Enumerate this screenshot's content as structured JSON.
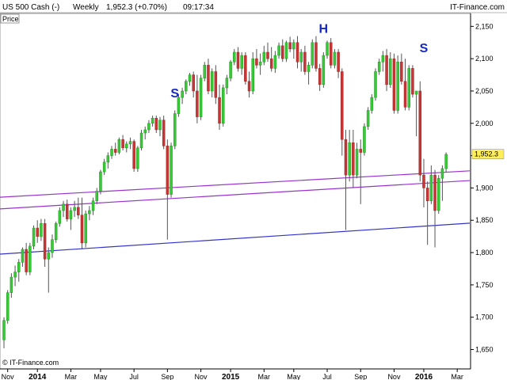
{
  "header": {
    "instrument": "US 500 Cash (-)",
    "timeframe": "Weekly",
    "last_change": "1,952.3 (+0.70%)",
    "time": "09:17:34",
    "brand": "IT-Finance.com"
  },
  "panel_label": "Price",
  "watermark": "© IT-Finance.com",
  "colors": {
    "up": "#33cc33",
    "down": "#cc3333",
    "channel": "#9933cc",
    "support": "#3333cc",
    "pattern": "#1428c8"
  },
  "chart_data": {
    "type": "candlestick",
    "title": "US 500 Cash (-) Weekly",
    "ylim": [
      1620,
      2170
    ],
    "y_ticks": [
      {
        "value": 1650,
        "label": "1,650"
      },
      {
        "value": 1700,
        "label": "1,700"
      },
      {
        "value": 1750,
        "label": "1,750"
      },
      {
        "value": 1800,
        "label": "1,800"
      },
      {
        "value": 1850,
        "label": "1,850"
      },
      {
        "value": 1900,
        "label": "1,900"
      },
      {
        "value": 1950,
        "label": "1,950"
      },
      {
        "value": 2000,
        "label": "2,000"
      },
      {
        "value": 2050,
        "label": "2,050"
      },
      {
        "value": 2100,
        "label": "2,100"
      },
      {
        "value": 2150,
        "label": "2,150"
      }
    ],
    "x_ticks": [
      {
        "week": 1,
        "label": "Nov",
        "bold": false
      },
      {
        "week": 9,
        "label": "2014",
        "bold": true
      },
      {
        "week": 18,
        "label": "Mar",
        "bold": false
      },
      {
        "week": 26,
        "label": "May",
        "bold": false
      },
      {
        "week": 35,
        "label": "Jul",
        "bold": false
      },
      {
        "week": 44,
        "label": "Sep",
        "bold": false
      },
      {
        "week": 53,
        "label": "Nov",
        "bold": false
      },
      {
        "week": 61,
        "label": "2015",
        "bold": true
      },
      {
        "week": 70,
        "label": "Mar",
        "bold": false
      },
      {
        "week": 78,
        "label": "May",
        "bold": false
      },
      {
        "week": 87,
        "label": "Jul",
        "bold": false
      },
      {
        "week": 96,
        "label": "Sep",
        "bold": false
      },
      {
        "week": 105,
        "label": "Nov",
        "bold": false
      },
      {
        "week": 113,
        "label": "2016",
        "bold": true
      },
      {
        "week": 122,
        "label": "Mar",
        "bold": false
      }
    ],
    "candles": [
      {
        "o": 1665,
        "h": 1700,
        "l": 1652,
        "c": 1695
      },
      {
        "o": 1695,
        "h": 1742,
        "l": 1690,
        "c": 1738
      },
      {
        "o": 1738,
        "h": 1768,
        "l": 1730,
        "c": 1762
      },
      {
        "o": 1762,
        "h": 1780,
        "l": 1748,
        "c": 1770
      },
      {
        "o": 1770,
        "h": 1790,
        "l": 1755,
        "c": 1785
      },
      {
        "o": 1785,
        "h": 1808,
        "l": 1778,
        "c": 1805
      },
      {
        "o": 1805,
        "h": 1815,
        "l": 1765,
        "c": 1770
      },
      {
        "o": 1770,
        "h": 1815,
        "l": 1765,
        "c": 1810
      },
      {
        "o": 1810,
        "h": 1842,
        "l": 1805,
        "c": 1838
      },
      {
        "o": 1838,
        "h": 1850,
        "l": 1815,
        "c": 1825
      },
      {
        "o": 1825,
        "h": 1852,
        "l": 1818,
        "c": 1845
      },
      {
        "o": 1845,
        "h": 1852,
        "l": 1778,
        "c": 1790
      },
      {
        "o": 1790,
        "h": 1808,
        "l": 1738,
        "c": 1800
      },
      {
        "o": 1800,
        "h": 1828,
        "l": 1792,
        "c": 1820
      },
      {
        "o": 1820,
        "h": 1848,
        "l": 1815,
        "c": 1845
      },
      {
        "o": 1845,
        "h": 1870,
        "l": 1840,
        "c": 1865
      },
      {
        "o": 1865,
        "h": 1880,
        "l": 1855,
        "c": 1875
      },
      {
        "o": 1875,
        "h": 1882,
        "l": 1848,
        "c": 1852
      },
      {
        "o": 1852,
        "h": 1870,
        "l": 1835,
        "c": 1865
      },
      {
        "o": 1865,
        "h": 1880,
        "l": 1855,
        "c": 1870
      },
      {
        "o": 1870,
        "h": 1885,
        "l": 1852,
        "c": 1858
      },
      {
        "o": 1858,
        "h": 1885,
        "l": 1805,
        "c": 1815
      },
      {
        "o": 1815,
        "h": 1865,
        "l": 1808,
        "c": 1860
      },
      {
        "o": 1860,
        "h": 1872,
        "l": 1850,
        "c": 1865
      },
      {
        "o": 1865,
        "h": 1885,
        "l": 1858,
        "c": 1880
      },
      {
        "o": 1880,
        "h": 1900,
        "l": 1875,
        "c": 1895
      },
      {
        "o": 1895,
        "h": 1928,
        "l": 1890,
        "c": 1925
      },
      {
        "o": 1925,
        "h": 1945,
        "l": 1920,
        "c": 1940
      },
      {
        "o": 1940,
        "h": 1955,
        "l": 1930,
        "c": 1950
      },
      {
        "o": 1950,
        "h": 1965,
        "l": 1945,
        "c": 1960
      },
      {
        "o": 1960,
        "h": 1970,
        "l": 1950,
        "c": 1955
      },
      {
        "o": 1955,
        "h": 1978,
        "l": 1952,
        "c": 1975
      },
      {
        "o": 1975,
        "h": 1982,
        "l": 1958,
        "c": 1962
      },
      {
        "o": 1962,
        "h": 1972,
        "l": 1955,
        "c": 1968
      },
      {
        "o": 1968,
        "h": 1978,
        "l": 1960,
        "c": 1972
      },
      {
        "o": 1972,
        "h": 1975,
        "l": 1925,
        "c": 1930
      },
      {
        "o": 1930,
        "h": 1965,
        "l": 1925,
        "c": 1962
      },
      {
        "o": 1962,
        "h": 1990,
        "l": 1958,
        "c": 1985
      },
      {
        "o": 1985,
        "h": 1995,
        "l": 1975,
        "c": 1990
      },
      {
        "o": 1990,
        "h": 2005,
        "l": 1985,
        "c": 2000
      },
      {
        "o": 2000,
        "h": 2012,
        "l": 1995,
        "c": 2008
      },
      {
        "o": 2008,
        "h": 2012,
        "l": 1985,
        "c": 1990
      },
      {
        "o": 1990,
        "h": 2010,
        "l": 1980,
        "c": 2005
      },
      {
        "o": 2005,
        "h": 2012,
        "l": 1960,
        "c": 1965
      },
      {
        "o": 1965,
        "h": 1975,
        "l": 1820,
        "c": 1890
      },
      {
        "o": 1890,
        "h": 1970,
        "l": 1885,
        "c": 1965
      },
      {
        "o": 1965,
        "h": 2020,
        "l": 1960,
        "c": 2015
      },
      {
        "o": 2015,
        "h": 2045,
        "l": 2010,
        "c": 2040
      },
      {
        "o": 2040,
        "h": 2055,
        "l": 2030,
        "c": 2050
      },
      {
        "o": 2050,
        "h": 2068,
        "l": 2045,
        "c": 2065
      },
      {
        "o": 2065,
        "h": 2078,
        "l": 2058,
        "c": 2075
      },
      {
        "o": 2075,
        "h": 2080,
        "l": 2040,
        "c": 2050
      },
      {
        "o": 2050,
        "h": 2075,
        "l": 2000,
        "c": 2010
      },
      {
        "o": 2010,
        "h": 2075,
        "l": 2005,
        "c": 2070
      },
      {
        "o": 2070,
        "h": 2095,
        "l": 2065,
        "c": 2090
      },
      {
        "o": 2090,
        "h": 2100,
        "l": 2045,
        "c": 2050
      },
      {
        "o": 2050,
        "h": 2085,
        "l": 2040,
        "c": 2080
      },
      {
        "o": 2080,
        "h": 2090,
        "l": 2030,
        "c": 2040
      },
      {
        "o": 2040,
        "h": 2060,
        "l": 1990,
        "c": 2000
      },
      {
        "o": 2000,
        "h": 2060,
        "l": 1995,
        "c": 2055
      },
      {
        "o": 2055,
        "h": 2075,
        "l": 2045,
        "c": 2070
      },
      {
        "o": 2070,
        "h": 2098,
        "l": 2065,
        "c": 2095
      },
      {
        "o": 2095,
        "h": 2115,
        "l": 2090,
        "c": 2110
      },
      {
        "o": 2110,
        "h": 2118,
        "l": 2080,
        "c": 2085
      },
      {
        "o": 2085,
        "h": 2110,
        "l": 2075,
        "c": 2105
      },
      {
        "o": 2105,
        "h": 2110,
        "l": 2060,
        "c": 2065
      },
      {
        "o": 2065,
        "h": 2080,
        "l": 2040,
        "c": 2050
      },
      {
        "o": 2050,
        "h": 2110,
        "l": 2045,
        "c": 2100
      },
      {
        "o": 2100,
        "h": 2115,
        "l": 2085,
        "c": 2090
      },
      {
        "o": 2090,
        "h": 2108,
        "l": 2075,
        "c": 2095
      },
      {
        "o": 2095,
        "h": 2120,
        "l": 2090,
        "c": 2110
      },
      {
        "o": 2110,
        "h": 2125,
        "l": 2095,
        "c": 2100
      },
      {
        "o": 2100,
        "h": 2118,
        "l": 2080,
        "c": 2085
      },
      {
        "o": 2085,
        "h": 2112,
        "l": 2078,
        "c": 2105
      },
      {
        "o": 2105,
        "h": 2125,
        "l": 2100,
        "c": 2120
      },
      {
        "o": 2120,
        "h": 2130,
        "l": 2095,
        "c": 2100
      },
      {
        "o": 2100,
        "h": 2128,
        "l": 2095,
        "c": 2125
      },
      {
        "o": 2125,
        "h": 2134,
        "l": 2110,
        "c": 2115
      },
      {
        "o": 2115,
        "h": 2130,
        "l": 2100,
        "c": 2125
      },
      {
        "o": 2125,
        "h": 2135,
        "l": 2085,
        "c": 2095
      },
      {
        "o": 2095,
        "h": 2115,
        "l": 2080,
        "c": 2110
      },
      {
        "o": 2110,
        "h": 2120,
        "l": 2075,
        "c": 2080
      },
      {
        "o": 2080,
        "h": 2095,
        "l": 2060,
        "c": 2090
      },
      {
        "o": 2090,
        "h": 2130,
        "l": 2085,
        "c": 2125
      },
      {
        "o": 2125,
        "h": 2135,
        "l": 2080,
        "c": 2085
      },
      {
        "o": 2085,
        "h": 2092,
        "l": 2050,
        "c": 2060
      },
      {
        "o": 2060,
        "h": 2110,
        "l": 2055,
        "c": 2105
      },
      {
        "o": 2105,
        "h": 2128,
        "l": 2100,
        "c": 2125
      },
      {
        "o": 2125,
        "h": 2132,
        "l": 2085,
        "c": 2090
      },
      {
        "o": 2090,
        "h": 2115,
        "l": 2085,
        "c": 2110
      },
      {
        "o": 2110,
        "h": 2115,
        "l": 2070,
        "c": 2080
      },
      {
        "o": 2080,
        "h": 2085,
        "l": 1950,
        "c": 1975
      },
      {
        "o": 1975,
        "h": 1990,
        "l": 1835,
        "c": 1920
      },
      {
        "o": 1920,
        "h": 1990,
        "l": 1910,
        "c": 1970
      },
      {
        "o": 1970,
        "h": 1990,
        "l": 1900,
        "c": 1920
      },
      {
        "o": 1920,
        "h": 1970,
        "l": 1915,
        "c": 1960
      },
      {
        "o": 1960,
        "h": 1975,
        "l": 1875,
        "c": 1955
      },
      {
        "o": 1955,
        "h": 2000,
        "l": 1950,
        "c": 1995
      },
      {
        "o": 1995,
        "h": 2025,
        "l": 1990,
        "c": 2020
      },
      {
        "o": 2020,
        "h": 2045,
        "l": 2015,
        "c": 2040
      },
      {
        "o": 2040,
        "h": 2085,
        "l": 2035,
        "c": 2080
      },
      {
        "o": 2080,
        "h": 2100,
        "l": 2075,
        "c": 2095
      },
      {
        "o": 2095,
        "h": 2112,
        "l": 2080,
        "c": 2105
      },
      {
        "o": 2105,
        "h": 2115,
        "l": 2050,
        "c": 2060
      },
      {
        "o": 2060,
        "h": 2110,
        "l": 2055,
        "c": 2100
      },
      {
        "o": 2100,
        "h": 2108,
        "l": 2015,
        "c": 2020
      },
      {
        "o": 2020,
        "h": 2105,
        "l": 2015,
        "c": 2095
      },
      {
        "o": 2095,
        "h": 2108,
        "l": 2060,
        "c": 2065
      },
      {
        "o": 2065,
        "h": 2100,
        "l": 2020,
        "c": 2025
      },
      {
        "o": 2025,
        "h": 2090,
        "l": 2020,
        "c": 2085
      },
      {
        "o": 2085,
        "h": 2090,
        "l": 2040,
        "c": 2045
      },
      {
        "o": 2045,
        "h": 2050,
        "l": 1980,
        "c": 2050
      },
      {
        "o": 2050,
        "h": 2065,
        "l": 1910,
        "c": 1920
      },
      {
        "o": 1920,
        "h": 1945,
        "l": 1870,
        "c": 1900
      },
      {
        "o": 1900,
        "h": 1910,
        "l": 1812,
        "c": 1880
      },
      {
        "o": 1880,
        "h": 1935,
        "l": 1875,
        "c": 1920
      },
      {
        "o": 1920,
        "h": 1928,
        "l": 1808,
        "c": 1865
      },
      {
        "o": 1865,
        "h": 1920,
        "l": 1860,
        "c": 1915
      },
      {
        "o": 1915,
        "h": 1935,
        "l": 1880,
        "c": 1930
      },
      {
        "o": 1930,
        "h": 1955,
        "l": 1925,
        "c": 1952
      }
    ],
    "last_price": {
      "value": 1952.3,
      "label": "1,952.3"
    },
    "lines": [
      {
        "name": "upper channel",
        "color": "#9933cc",
        "from": {
          "week": 0,
          "price": 1886
        },
        "to": {
          "week": 124,
          "price": 1926
        }
      },
      {
        "name": "lower channel",
        "color": "#9933cc",
        "from": {
          "week": 0,
          "price": 1868
        },
        "to": {
          "week": 124,
          "price": 1911
        }
      },
      {
        "name": "support",
        "color": "#3333cc",
        "from": {
          "week": 0,
          "price": 1798
        },
        "to": {
          "week": 124,
          "price": 1845
        }
      }
    ],
    "annotations": [
      {
        "text": "S",
        "week": 46,
        "price": 2040
      },
      {
        "text": "H",
        "week": 86,
        "price": 2140
      },
      {
        "text": "S",
        "week": 113,
        "price": 2110
      }
    ]
  }
}
